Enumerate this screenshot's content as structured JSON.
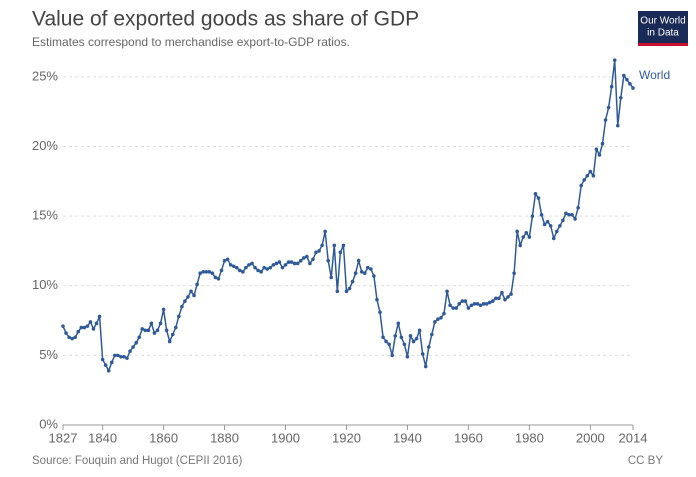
{
  "chart_data": {
    "type": "line",
    "title": "Value of exported goods as share of GDP",
    "subtitle": "Estimates correspond to merchandise export-to-GDP ratios.",
    "source": "Source: Fouquin and Hugot (CEPII 2016)",
    "license": "CC BY",
    "logo": [
      "Our World",
      "in Data"
    ],
    "xlim": [
      1827,
      2014
    ],
    "xticks": [
      1827,
      1840,
      1860,
      1880,
      1900,
      1920,
      1940,
      1960,
      1980,
      2000,
      2014
    ],
    "ylim": [
      0,
      26.5
    ],
    "yticks": [
      {
        "value": 0,
        "label": "0%"
      },
      {
        "value": 5,
        "label": "5%"
      },
      {
        "value": 10,
        "label": "10%"
      },
      {
        "value": 15,
        "label": "15%"
      },
      {
        "value": 20,
        "label": "20%"
      },
      {
        "value": 25,
        "label": "25%"
      }
    ],
    "grid": true,
    "x": [
      1827,
      1828,
      1829,
      1830,
      1831,
      1832,
      1833,
      1834,
      1835,
      1836,
      1837,
      1838,
      1839,
      1840,
      1841,
      1842,
      1843,
      1844,
      1845,
      1846,
      1847,
      1848,
      1849,
      1850,
      1851,
      1852,
      1853,
      1854,
      1855,
      1856,
      1857,
      1858,
      1859,
      1860,
      1861,
      1862,
      1863,
      1864,
      1865,
      1866,
      1867,
      1868,
      1869,
      1870,
      1871,
      1872,
      1873,
      1874,
      1875,
      1876,
      1877,
      1878,
      1879,
      1880,
      1881,
      1882,
      1883,
      1884,
      1885,
      1886,
      1887,
      1888,
      1889,
      1890,
      1891,
      1892,
      1893,
      1894,
      1895,
      1896,
      1897,
      1898,
      1899,
      1900,
      1901,
      1902,
      1903,
      1904,
      1905,
      1906,
      1907,
      1908,
      1909,
      1910,
      1911,
      1912,
      1913,
      1914,
      1915,
      1916,
      1917,
      1918,
      1919,
      1920,
      1921,
      1922,
      1923,
      1924,
      1925,
      1926,
      1927,
      1928,
      1929,
      1930,
      1931,
      1932,
      1933,
      1934,
      1935,
      1936,
      1937,
      1938,
      1939,
      1940,
      1941,
      1942,
      1943,
      1944,
      1945,
      1946,
      1947,
      1948,
      1949,
      1950,
      1951,
      1952,
      1953,
      1954,
      1955,
      1956,
      1957,
      1958,
      1959,
      1960,
      1961,
      1962,
      1963,
      1964,
      1965,
      1966,
      1967,
      1968,
      1969,
      1970,
      1971,
      1972,
      1973,
      1974,
      1975,
      1976,
      1977,
      1978,
      1979,
      1980,
      1981,
      1982,
      1983,
      1984,
      1985,
      1986,
      1987,
      1988,
      1989,
      1990,
      1991,
      1992,
      1993,
      1994,
      1995,
      1996,
      1997,
      1998,
      1999,
      2000,
      2001,
      2002,
      2003,
      2004,
      2005,
      2006,
      2007,
      2008,
      2009,
      2010,
      2011,
      2012,
      2013,
      2014
    ],
    "series": [
      {
        "name": "World",
        "color": "#2f5a9a",
        "values": [
          7.1,
          6.6,
          6.3,
          6.2,
          6.3,
          6.7,
          7.0,
          7.0,
          7.1,
          7.4,
          6.9,
          7.3,
          7.8,
          4.7,
          4.3,
          3.9,
          4.5,
          5.0,
          5.0,
          4.9,
          4.9,
          4.8,
          5.3,
          5.6,
          5.9,
          6.3,
          6.9,
          6.8,
          6.8,
          7.3,
          6.6,
          6.8,
          7.3,
          8.3,
          6.8,
          6.0,
          6.5,
          7.0,
          7.8,
          8.5,
          8.9,
          9.2,
          9.6,
          9.3,
          10.1,
          10.9,
          11.0,
          11.0,
          11.0,
          10.9,
          10.6,
          10.5,
          11.1,
          11.8,
          11.9,
          11.5,
          11.4,
          11.3,
          11.1,
          11.0,
          11.3,
          11.5,
          11.6,
          11.3,
          11.1,
          11.0,
          11.3,
          11.2,
          11.3,
          11.5,
          11.6,
          11.7,
          11.3,
          11.5,
          11.7,
          11.7,
          11.6,
          11.6,
          11.8,
          12.0,
          12.1,
          11.6,
          11.9,
          12.4,
          12.5,
          12.9,
          13.9,
          11.8,
          10.6,
          12.9,
          9.6,
          12.4,
          12.9,
          9.6,
          9.8,
          10.3,
          10.9,
          11.8,
          11.0,
          10.9,
          11.3,
          11.2,
          10.7,
          9.0,
          8.1,
          6.3,
          6.0,
          5.8,
          5.0,
          6.4,
          7.3,
          6.3,
          5.8,
          4.9,
          6.4,
          6.0,
          6.2,
          6.8,
          5.1,
          4.2,
          5.6,
          6.5,
          7.4,
          7.6,
          7.7,
          8.0,
          9.6,
          8.6,
          8.4,
          8.4,
          8.7,
          8.9,
          8.9,
          8.4,
          8.6,
          8.7,
          8.7,
          8.6,
          8.7,
          8.7,
          8.8,
          8.9,
          9.1,
          9.1,
          9.5,
          9.0,
          9.2,
          9.4,
          10.9,
          13.9,
          12.9,
          13.5,
          13.8,
          13.5,
          15.0,
          16.6,
          16.3,
          15.1,
          14.4,
          14.6,
          14.3,
          13.4,
          13.9,
          14.3,
          14.7,
          15.2,
          15.1,
          15.1,
          14.8,
          15.6,
          17.2,
          17.6,
          17.9,
          18.2,
          17.9,
          19.8,
          19.4,
          20.2,
          21.9,
          22.8,
          24.3,
          26.2,
          21.5,
          23.5,
          25.1,
          24.8,
          24.5,
          24.2
        ]
      }
    ]
  }
}
